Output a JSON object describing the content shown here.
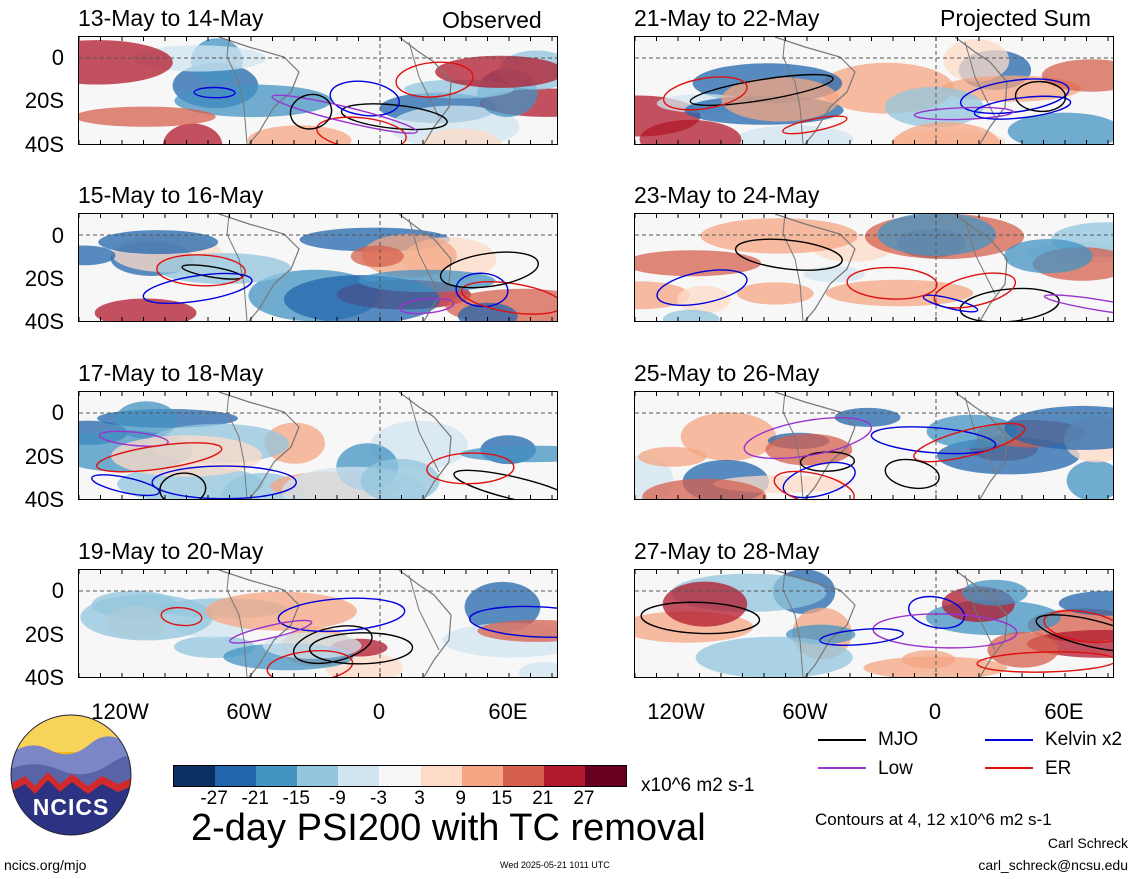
{
  "panels": {
    "observed": [
      {
        "title": "13-May to 14-May"
      },
      {
        "title": "15-May to 16-May"
      },
      {
        "title": "17-May to 18-May"
      },
      {
        "title": "19-May to 20-May"
      }
    ],
    "projected": [
      {
        "title": "21-May to 22-May"
      },
      {
        "title": "23-May to 24-May"
      },
      {
        "title": "25-May to 26-May"
      },
      {
        "title": "27-May to 28-May"
      }
    ],
    "observed_label": "Observed",
    "projected_label": "Projected Sum"
  },
  "axes": {
    "y_ticks": [
      "0",
      "20S",
      "40S"
    ],
    "x_ticks": [
      "120W",
      "60W",
      "0",
      "60E"
    ]
  },
  "legend": {
    "mjo": {
      "label": "MJO",
      "color": "#000000"
    },
    "low": {
      "label": "Low",
      "color": "#9a32cd"
    },
    "kelvin": {
      "label": "Kelvin x2",
      "color": "#0000dd"
    },
    "er": {
      "label": "ER",
      "color": "#e01010"
    },
    "contours_note": "Contours at 4, 12 x10^6 m2 s-1"
  },
  "colorbar": {
    "colors": [
      "#0b2f63",
      "#2166ac",
      "#4393c3",
      "#92c5de",
      "#d1e5f0",
      "#f7f7f7",
      "#fddbc7",
      "#f4a582",
      "#d6604d",
      "#b2182b",
      "#67001f"
    ],
    "labels": [
      "-27",
      "-21",
      "-15",
      "-9",
      "-3",
      "3",
      "9",
      "15",
      "21",
      "27"
    ],
    "units": "x10^6 m2 s-1"
  },
  "footer": {
    "main_title": "2-day PSI200 with TC removal",
    "left_url": "ncics.org/mjo",
    "timestamp": "Wed 2025-05-21 1011 UTC",
    "author": "Carl Schreck",
    "email": "carl_schreck@ncsu.edu",
    "logo_text": "NCICS"
  }
}
